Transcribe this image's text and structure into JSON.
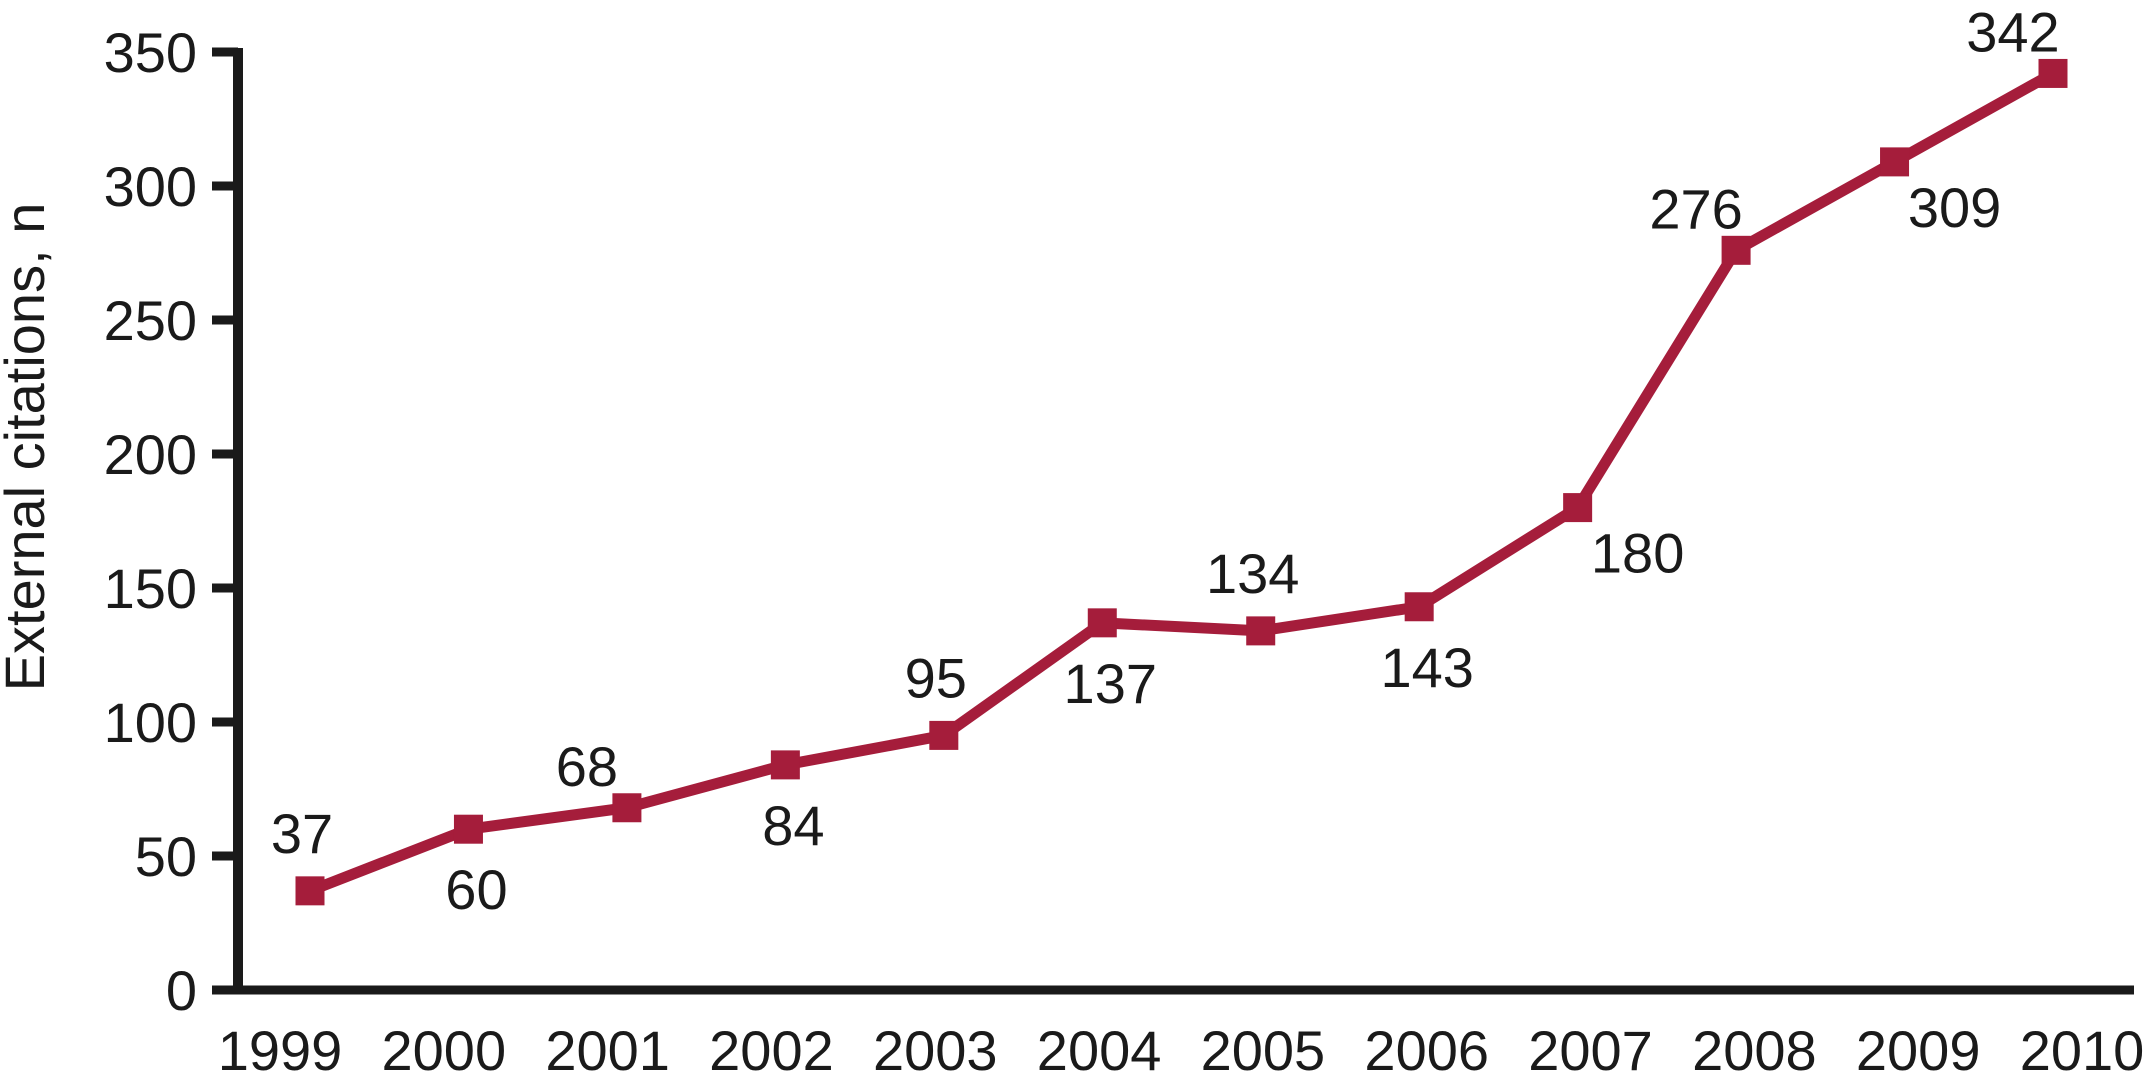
{
  "figure": {
    "background_color": "#ffffff",
    "axis_color": "#1a1a1a",
    "text_color": "#1a1a1a",
    "series_color": "#a51d3b"
  },
  "chart_data": {
    "type": "line",
    "title": "",
    "xlabel": "",
    "ylabel": "External citations, n",
    "categories": [
      "1999",
      "2000",
      "2001",
      "2002",
      "2003",
      "2004",
      "2005",
      "2006",
      "2007",
      "2008",
      "2009",
      "2010"
    ],
    "series": [
      {
        "values": [
          37,
          60,
          68,
          84,
          95,
          137,
          134,
          143,
          180,
          276,
          309,
          342
        ],
        "color": "#a51d3b",
        "marker": "square",
        "data_labels": [
          "37",
          "60",
          "68",
          "84",
          "95",
          "137",
          "134",
          "143",
          "180",
          "276",
          "309",
          "342"
        ],
        "data_label_placements": [
          "above",
          "below",
          "above-left",
          "below",
          "above",
          "below",
          "above",
          "below",
          "below-right",
          "above-left",
          "below-right",
          "above-left"
        ]
      }
    ],
    "ylim": [
      0,
      350
    ],
    "yticks": [
      0,
      50,
      100,
      150,
      200,
      250,
      300,
      350
    ],
    "grid": false,
    "legend_position": "none"
  }
}
